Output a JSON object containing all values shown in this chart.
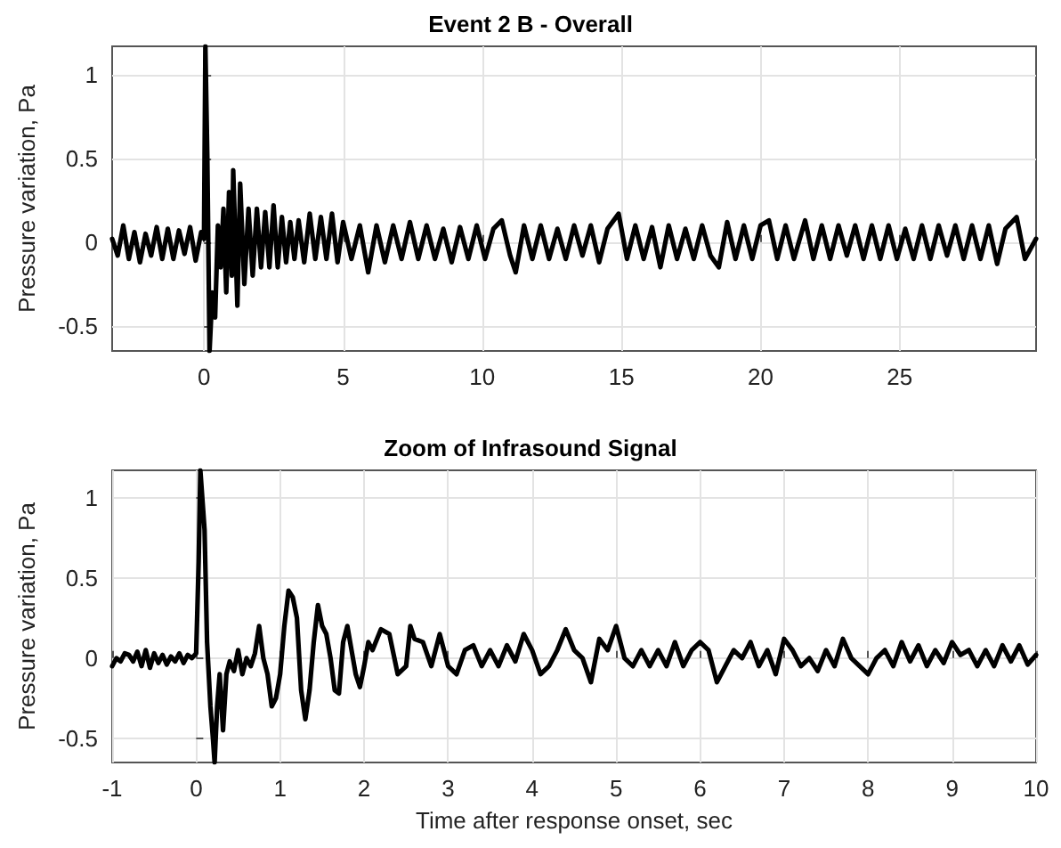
{
  "chart_data": [
    {
      "type": "line",
      "title": "Event 2 B - Overall",
      "ylabel": "Pressure variation, Pa",
      "xlim": [
        -3.3,
        29.9
      ],
      "ylim": [
        -0.65,
        1.17
      ],
      "xticks": [
        0,
        5,
        10,
        15,
        20,
        25
      ],
      "yticks": [
        -0.5,
        0,
        0.5,
        1
      ],
      "grid": true,
      "marker": "none",
      "line_style": "solid",
      "series": [
        {
          "color": "#000000",
          "x": [
            -3.3,
            -3.1,
            -2.9,
            -2.7,
            -2.5,
            -2.3,
            -2.1,
            -1.9,
            -1.7,
            -1.5,
            -1.3,
            -1.1,
            -0.9,
            -0.7,
            -0.5,
            -0.3,
            -0.1,
            0,
            0.05,
            0.12,
            0.2,
            0.3,
            0.4,
            0.5,
            0.6,
            0.7,
            0.8,
            0.9,
            1.0,
            1.05,
            1.2,
            1.3,
            1.45,
            1.6,
            1.75,
            1.9,
            2.05,
            2.2,
            2.35,
            2.5,
            2.65,
            2.8,
            2.95,
            3.1,
            3.25,
            3.4,
            3.6,
            3.8,
            4.0,
            4.2,
            4.4,
            4.6,
            4.8,
            5.0,
            5.3,
            5.6,
            5.9,
            6.2,
            6.5,
            6.8,
            7.1,
            7.4,
            7.7,
            8.0,
            8.3,
            8.6,
            8.9,
            9.2,
            9.5,
            9.8,
            10.1,
            10.4,
            10.7,
            11.0,
            11.2,
            11.5,
            11.8,
            12.1,
            12.4,
            12.7,
            13.0,
            13.3,
            13.6,
            13.9,
            14.2,
            14.5,
            14.9,
            15.2,
            15.5,
            15.8,
            16.1,
            16.4,
            16.7,
            17.0,
            17.3,
            17.6,
            17.9,
            18.2,
            18.5,
            18.8,
            19.1,
            19.4,
            19.7,
            20.0,
            20.3,
            20.6,
            20.9,
            21.2,
            21.6,
            21.9,
            22.2,
            22.5,
            22.8,
            23.1,
            23.4,
            23.7,
            24.0,
            24.3,
            24.6,
            24.9,
            25.2,
            25.5,
            25.8,
            26.1,
            26.4,
            26.7,
            27.0,
            27.3,
            27.6,
            27.9,
            28.2,
            28.5,
            28.8,
            29.2,
            29.5,
            29.9
          ],
          "values": [
            0.02,
            -0.08,
            0.1,
            -0.1,
            0.06,
            -0.12,
            0.05,
            -0.08,
            0.09,
            -0.1,
            0.08,
            -0.1,
            0.07,
            -0.07,
            0.09,
            -0.11,
            0.06,
            0.02,
            1.17,
            0.5,
            -0.65,
            -0.3,
            -0.45,
            0.1,
            -0.15,
            0.2,
            -0.3,
            0.3,
            -0.2,
            0.43,
            -0.38,
            0.35,
            -0.25,
            0.2,
            -0.2,
            0.2,
            -0.15,
            0.18,
            -0.15,
            0.22,
            -0.15,
            0.15,
            -0.12,
            0.12,
            -0.1,
            0.13,
            -0.12,
            0.17,
            -0.1,
            0.15,
            -0.1,
            0.17,
            -0.12,
            0.12,
            -0.1,
            0.1,
            -0.18,
            0.1,
            -0.12,
            0.1,
            -0.1,
            0.12,
            -0.1,
            0.1,
            -0.1,
            0.08,
            -0.12,
            0.09,
            -0.1,
            0.1,
            -0.1,
            0.08,
            0.13,
            -0.08,
            -0.18,
            0.1,
            -0.1,
            0.1,
            -0.1,
            0.08,
            -0.1,
            0.1,
            -0.08,
            0.1,
            -0.12,
            0.08,
            0.17,
            -0.1,
            0.1,
            -0.1,
            0.09,
            -0.15,
            0.1,
            -0.1,
            0.08,
            -0.1,
            0.1,
            -0.08,
            -0.15,
            0.12,
            -0.1,
            0.1,
            -0.1,
            0.1,
            0.13,
            -0.1,
            0.1,
            -0.1,
            0.13,
            -0.1,
            0.1,
            -0.1,
            0.1,
            -0.08,
            0.1,
            -0.1,
            0.1,
            -0.1,
            0.1,
            -0.1,
            0.08,
            -0.1,
            0.1,
            -0.1,
            0.1,
            -0.08,
            0.1,
            -0.1,
            0.1,
            -0.1,
            0.1,
            -0.13,
            0.08,
            0.15,
            -0.1,
            0.02
          ]
        }
      ]
    },
    {
      "type": "line",
      "title": "Zoom of Infrasound Signal",
      "xlabel": "Time after response onset, sec",
      "ylabel": "Pressure variation, Pa",
      "xlim": [
        -1,
        10
      ],
      "ylim": [
        -0.65,
        1.17
      ],
      "xticks": [
        -1,
        0,
        1,
        2,
        3,
        4,
        5,
        6,
        7,
        8,
        9,
        10
      ],
      "yticks": [
        -0.5,
        0,
        0.5,
        1
      ],
      "grid": true,
      "marker": "none",
      "line_style": "solid",
      "series": [
        {
          "color": "#000000",
          "x": [
            -1,
            -0.95,
            -0.9,
            -0.85,
            -0.8,
            -0.75,
            -0.7,
            -0.65,
            -0.6,
            -0.55,
            -0.5,
            -0.45,
            -0.4,
            -0.35,
            -0.3,
            -0.25,
            -0.2,
            -0.15,
            -0.1,
            -0.05,
            0,
            0.03,
            0.05,
            0.1,
            0.13,
            0.17,
            0.2,
            0.22,
            0.25,
            0.28,
            0.32,
            0.36,
            0.4,
            0.45,
            0.5,
            0.55,
            0.6,
            0.65,
            0.7,
            0.75,
            0.8,
            0.85,
            0.9,
            0.95,
            1.0,
            1.05,
            1.1,
            1.15,
            1.2,
            1.25,
            1.3,
            1.35,
            1.4,
            1.45,
            1.5,
            1.55,
            1.6,
            1.65,
            1.7,
            1.75,
            1.8,
            1.85,
            1.9,
            1.95,
            2.0,
            2.05,
            2.1,
            2.2,
            2.3,
            2.4,
            2.5,
            2.55,
            2.6,
            2.7,
            2.8,
            2.9,
            3.0,
            3.1,
            3.2,
            3.3,
            3.4,
            3.5,
            3.6,
            3.7,
            3.8,
            3.9,
            4.0,
            4.1,
            4.2,
            4.3,
            4.4,
            4.5,
            4.6,
            4.7,
            4.8,
            4.9,
            5.0,
            5.1,
            5.2,
            5.3,
            5.4,
            5.5,
            5.6,
            5.7,
            5.8,
            5.9,
            6.0,
            6.1,
            6.2,
            6.3,
            6.4,
            6.5,
            6.6,
            6.7,
            6.8,
            6.9,
            7.0,
            7.1,
            7.2,
            7.3,
            7.4,
            7.5,
            7.6,
            7.7,
            7.8,
            7.9,
            8.0,
            8.1,
            8.2,
            8.3,
            8.4,
            8.5,
            8.6,
            8.7,
            8.8,
            8.9,
            9.0,
            9.1,
            9.2,
            9.3,
            9.4,
            9.5,
            9.6,
            9.7,
            9.8,
            9.9,
            10
          ],
          "values": [
            -0.05,
            0.0,
            -0.02,
            0.03,
            0.02,
            -0.02,
            0.04,
            -0.05,
            0.05,
            -0.06,
            0.03,
            -0.03,
            0.02,
            -0.04,
            0.01,
            -0.02,
            0.03,
            -0.03,
            0.02,
            0.0,
            0.03,
            0.6,
            1.17,
            0.8,
            0.1,
            -0.3,
            -0.5,
            -0.65,
            -0.3,
            -0.1,
            -0.45,
            -0.1,
            -0.02,
            -0.08,
            0.05,
            -0.1,
            0.0,
            -0.05,
            0.03,
            0.2,
            0.0,
            -0.1,
            -0.3,
            -0.25,
            -0.1,
            0.2,
            0.42,
            0.38,
            0.25,
            -0.2,
            -0.38,
            -0.2,
            0.1,
            0.33,
            0.2,
            0.15,
            0.0,
            -0.2,
            -0.22,
            0.1,
            0.2,
            0.05,
            -0.1,
            -0.18,
            -0.05,
            0.1,
            0.05,
            0.18,
            0.15,
            -0.1,
            -0.05,
            0.2,
            0.12,
            0.1,
            -0.05,
            0.15,
            -0.05,
            -0.1,
            0.05,
            0.08,
            -0.05,
            0.05,
            -0.05,
            0.08,
            -0.02,
            0.15,
            0.05,
            -0.1,
            -0.05,
            0.05,
            0.18,
            0.05,
            0.0,
            -0.15,
            0.12,
            0.05,
            0.2,
            0.0,
            -0.05,
            0.05,
            -0.05,
            0.05,
            -0.05,
            0.1,
            -0.05,
            0.05,
            0.1,
            0.05,
            -0.15,
            -0.05,
            0.05,
            0.0,
            0.1,
            -0.05,
            0.05,
            -0.1,
            0.12,
            0.05,
            -0.05,
            0.0,
            -0.08,
            0.05,
            -0.05,
            0.12,
            0.0,
            -0.05,
            -0.1,
            0.0,
            0.05,
            -0.05,
            0.1,
            -0.02,
            0.08,
            -0.05,
            0.05,
            -0.03,
            0.1,
            0.02,
            0.05,
            -0.05,
            0.05,
            -0.05,
            0.08,
            -0.02,
            0.08,
            -0.04,
            0.02
          ]
        }
      ]
    }
  ]
}
